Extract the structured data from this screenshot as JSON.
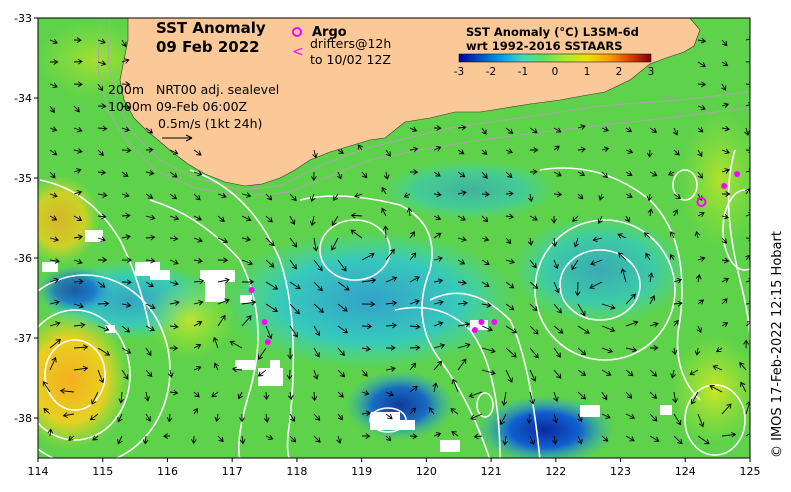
{
  "map": {
    "title": "SST Anomaly",
    "date": "09 Feb 2022",
    "depth_labels": [
      "200m",
      "1000m"
    ],
    "sealevel_label": "NRT00 adj. sealevel",
    "sealevel_time": "09-Feb 06:00Z",
    "vector_scale": "0.5m/s (1kt 24h)",
    "credit": "© IMOS 17-Feb-2022 12:15 Hobart",
    "extent": {
      "lon_min": 114,
      "lon_max": 125,
      "lat_min": -38.5,
      "lat_max": -33
    },
    "lon_ticks": [
      "114",
      "115",
      "116",
      "117",
      "118",
      "119",
      "120",
      "121",
      "122",
      "123",
      "124",
      "125"
    ],
    "lat_ticks": [
      "-33",
      "-34",
      "-35",
      "-36",
      "-37",
      "-38"
    ]
  },
  "legend": {
    "argo_label": "Argo",
    "drifters_label": "drifters@12h",
    "drifters_until": "to 10/02 12Z",
    "argo_color": "#ff00ff",
    "drifter_color": "#ff00ff"
  },
  "colorbar": {
    "title_line1": "SST Anomaly (°C) L3SM-6d",
    "title_line2": "wrt 1992-2016 SSTAARS",
    "ticks": [
      "-3",
      "-2",
      "-1",
      "0",
      "1",
      "2",
      "3"
    ],
    "range": [
      -3,
      3
    ],
    "colors": [
      "#0000a0",
      "#0050d0",
      "#00a0e8",
      "#40d8c0",
      "#60e060",
      "#a8ea30",
      "#f0e000",
      "#f8a000",
      "#e04000",
      "#800000"
    ]
  },
  "colors": {
    "land": "#fbc897",
    "ocean_anomaly_base": "#5ed24a",
    "contour": "#ffffff",
    "isobath": "#a8a8a8"
  },
  "argo_floats": [
    {
      "lon": 124.25,
      "lat": -35.3
    }
  ],
  "drifters": [
    {
      "lon": 124.6,
      "lat": -35.1
    },
    {
      "lon": 124.8,
      "lat": -34.95
    },
    {
      "lon": 117.3,
      "lat": -36.4
    },
    {
      "lon": 117.5,
      "lat": -36.8
    },
    {
      "lon": 117.55,
      "lat": -37.05
    },
    {
      "lon": 120.75,
      "lat": -36.9
    },
    {
      "lon": 120.85,
      "lat": -36.8
    },
    {
      "lon": 121.05,
      "lat": -36.8
    }
  ]
}
